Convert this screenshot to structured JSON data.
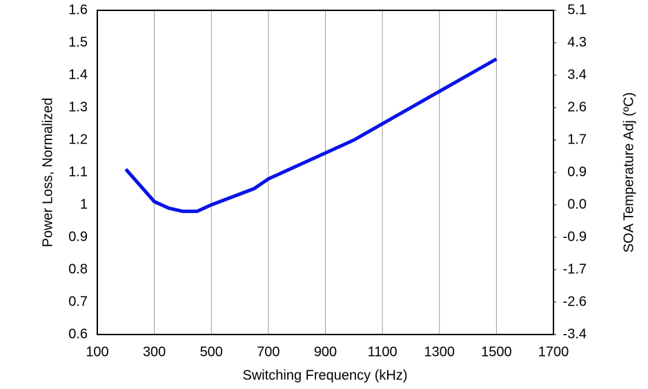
{
  "chart_data": {
    "type": "line",
    "xlabel": "Switching Frequency (kHz)",
    "ylabel": "Power Loss, Normalized",
    "y2label": "SOA Temperature Adj (ºC)",
    "x": [
      200,
      300,
      350,
      400,
      450,
      500,
      650,
      700,
      1000,
      1500
    ],
    "series": [
      {
        "color": "#0a14e6",
        "values": [
          1.11,
          1.01,
          0.99,
          0.98,
          0.98,
          1.0,
          1.05,
          1.08,
          1.2,
          1.45
        ]
      }
    ],
    "xlim": [
      100,
      1700
    ],
    "xticks": [
      100,
      300,
      500,
      700,
      900,
      1100,
      1300,
      1500,
      1700
    ],
    "ylim": [
      0.6,
      1.6
    ],
    "yticks": [
      0.6,
      0.7,
      0.8,
      0.9,
      1,
      1.1,
      1.2,
      1.3,
      1.4,
      1.5,
      1.6
    ],
    "y2lim": [
      -3.4,
      5.1
    ],
    "y2ticks": [
      -3.4,
      {
        "value": -2.55,
        "label": "-2.6"
      },
      -1.7,
      {
        "value": -0.85,
        "label": "-0.9"
      },
      {
        "value": 0,
        "label": "0.0"
      },
      {
        "value": 0.85,
        "label": "0.9"
      },
      1.7,
      {
        "value": 2.55,
        "label": "2.6"
      },
      3.4,
      {
        "value": 4.25,
        "label": "4.3"
      },
      5.1
    ],
    "grid": "x"
  }
}
